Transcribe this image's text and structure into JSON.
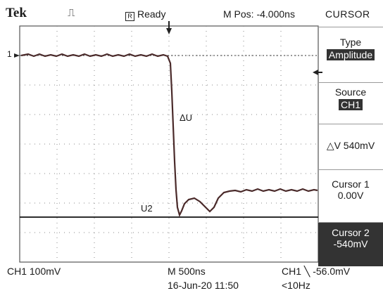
{
  "header": {
    "brand": "Tek",
    "trigger_icon": "pulse-trigger-icon",
    "status": "Ready",
    "status_icon": "run-stop-box-icon",
    "mpos": "M Pos: -4.000ns"
  },
  "markers": {
    "ch1_level": "1",
    "delta_label": "ΔU",
    "cursor2_label": "U2"
  },
  "menu": {
    "title": "CURSOR",
    "type_label": "Type",
    "type_value": "Amplitude",
    "source_label": "Source",
    "source_value": "CH1",
    "delta_readout": "△V 540mV",
    "cursor1_label": "Cursor 1",
    "cursor1_value": "0.00V",
    "cursor2_label": "Cursor 2",
    "cursor2_value": "-540mV"
  },
  "footer": {
    "ch1_scale": "CH1  100mV",
    "timebase": "M 500ns",
    "trigger": "CH1 ╲ -56.0mV",
    "datetime": "16-Jun-20 11:50",
    "freq": "<10Hz"
  }
}
